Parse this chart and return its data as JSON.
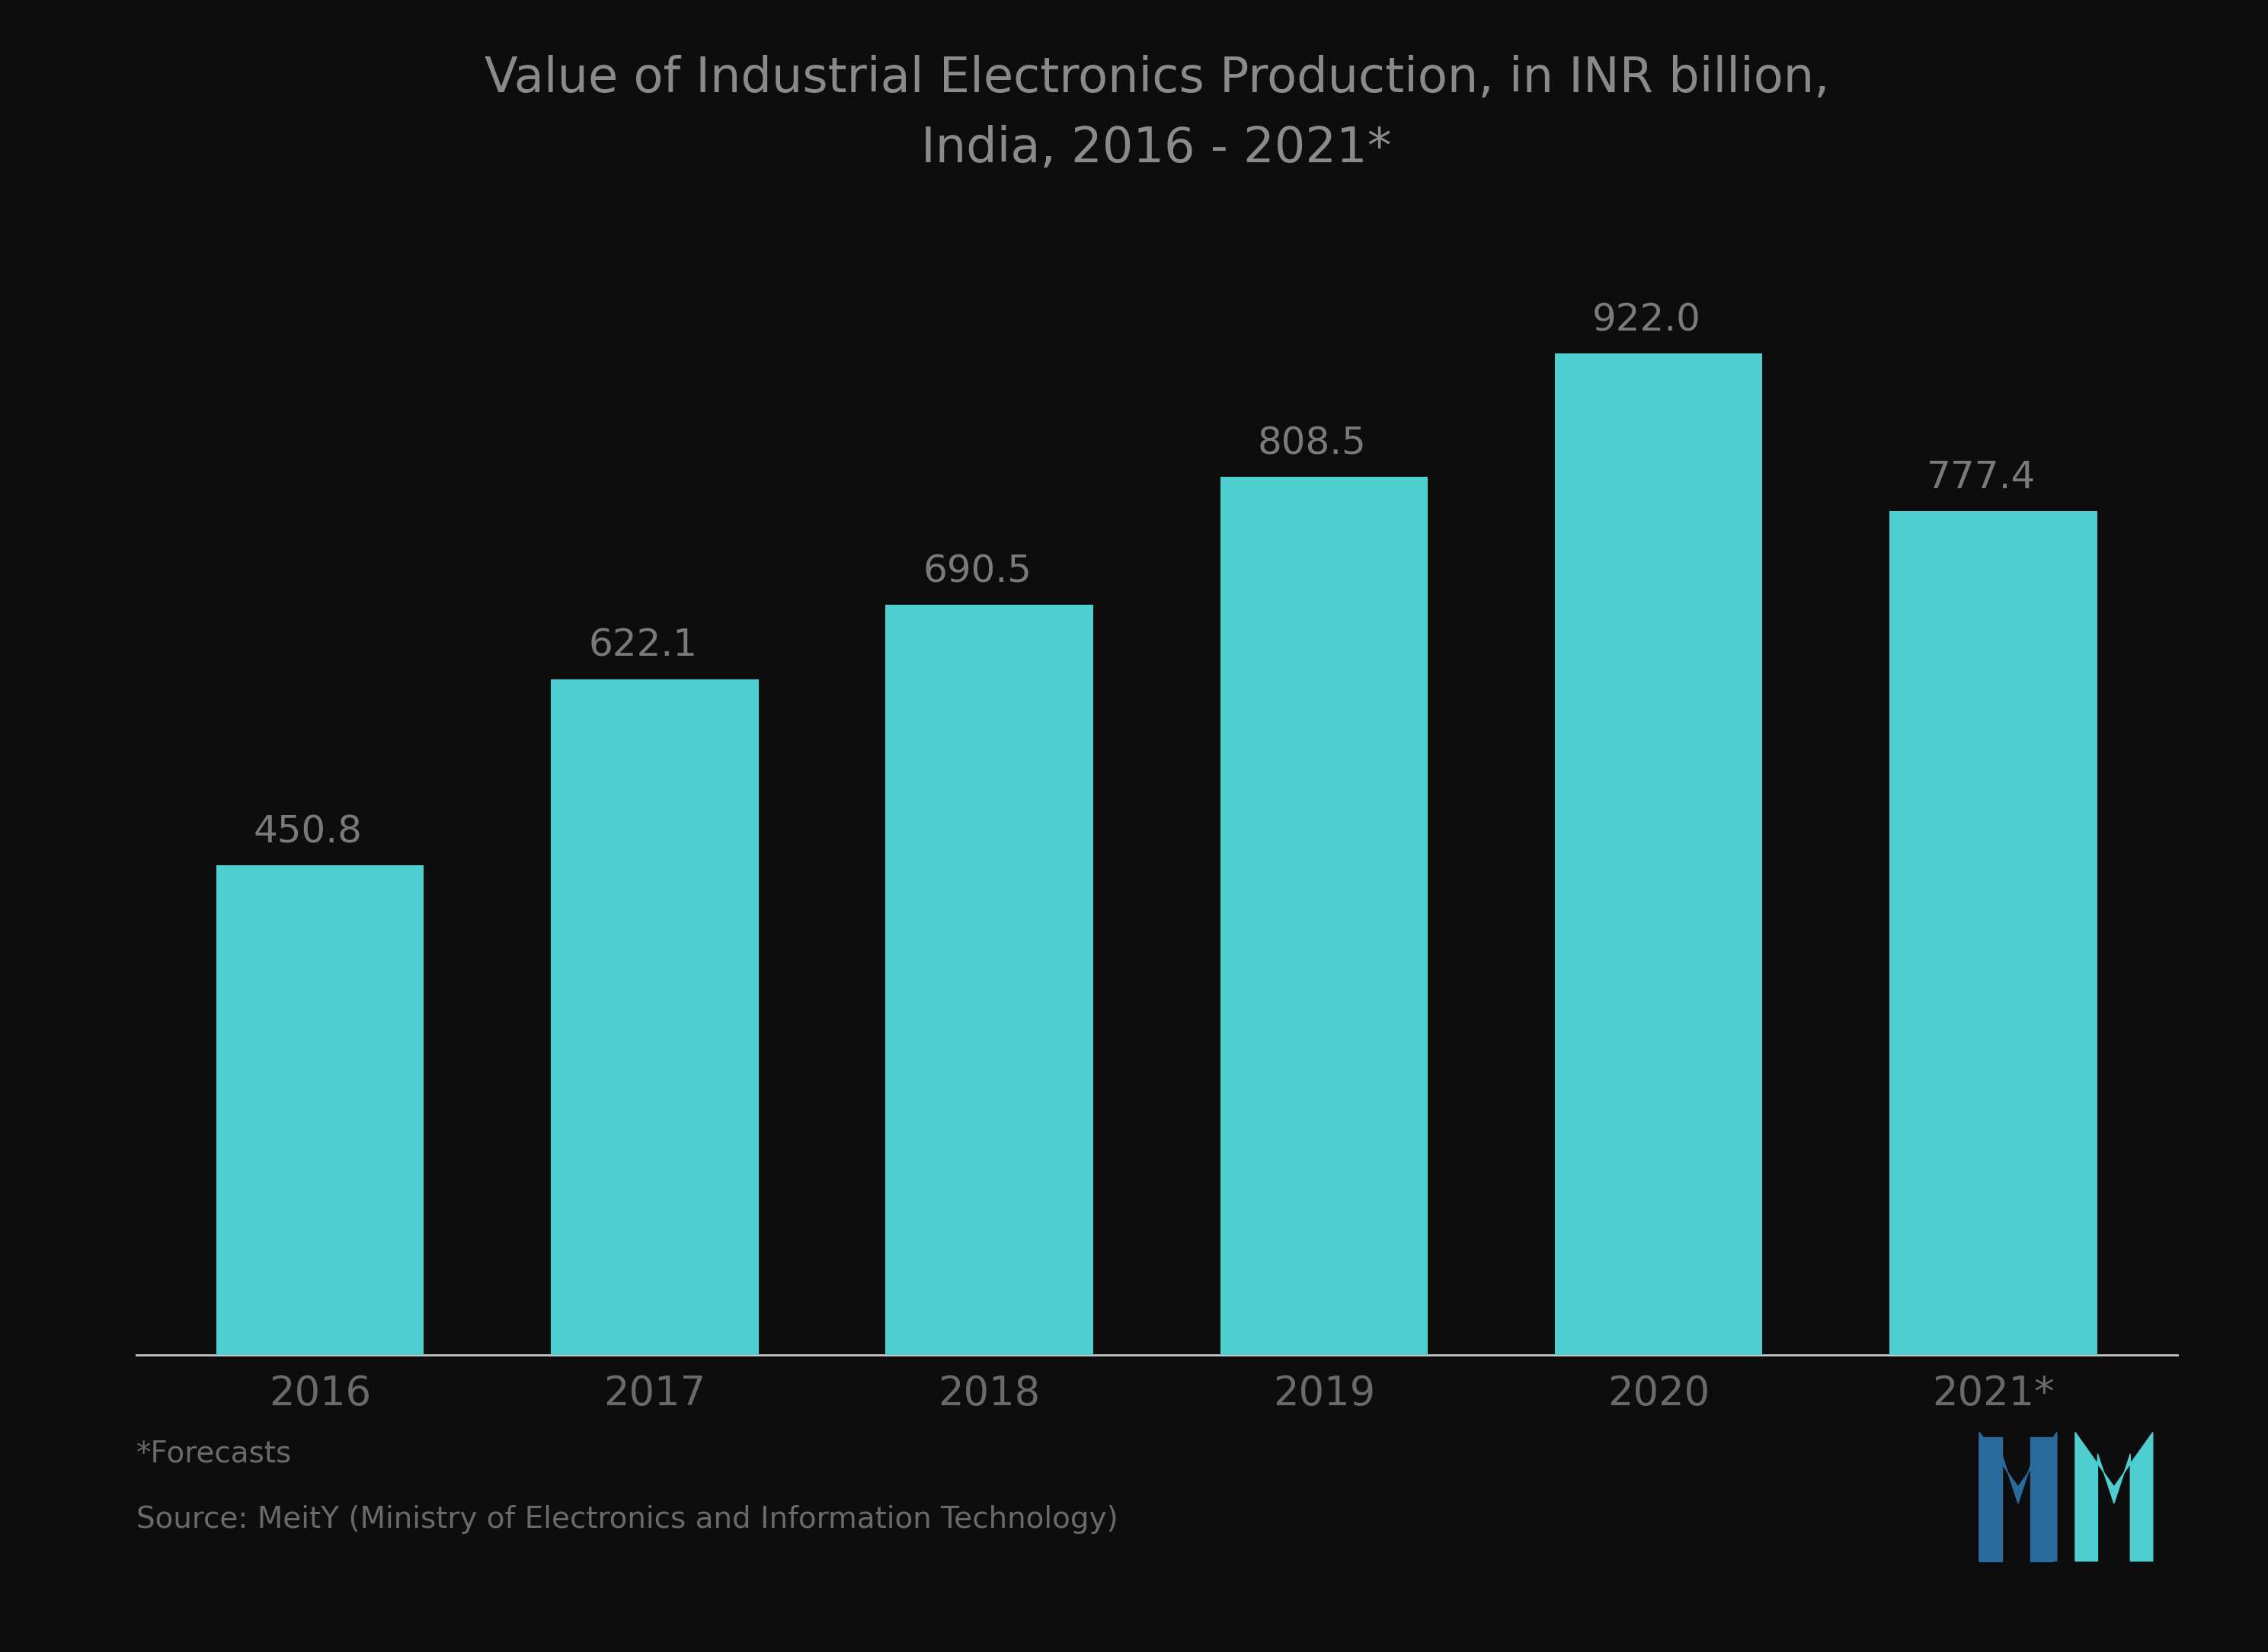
{
  "categories": [
    "2016",
    "2017",
    "2018",
    "2019",
    "2020",
    "2021*"
  ],
  "values": [
    450.8,
    622.1,
    690.5,
    808.5,
    922.0,
    777.4
  ],
  "bar_color": "#4ECECE",
  "background_color": "#0d0d0d",
  "title_line1": "Value of Industrial Electronics Production, in INR billion,",
  "title_line2": "India, 2016 - 2021*",
  "title_color": "#8a8a8a",
  "title_fontsize": 46,
  "label_color": "#7a7a7a",
  "label_fontsize": 36,
  "tick_color": "#6a6a6a",
  "tick_fontsize": 38,
  "footer_note": "*Forecasts",
  "footer_source": "Source: MeitY (Ministry of Electronics and Information Technology)",
  "footer_fontsize": 28,
  "footer_color": "#6a6a6a",
  "ylim": [
    0,
    1050
  ],
  "bar_width": 0.62,
  "spine_color": "#c8c8c8"
}
